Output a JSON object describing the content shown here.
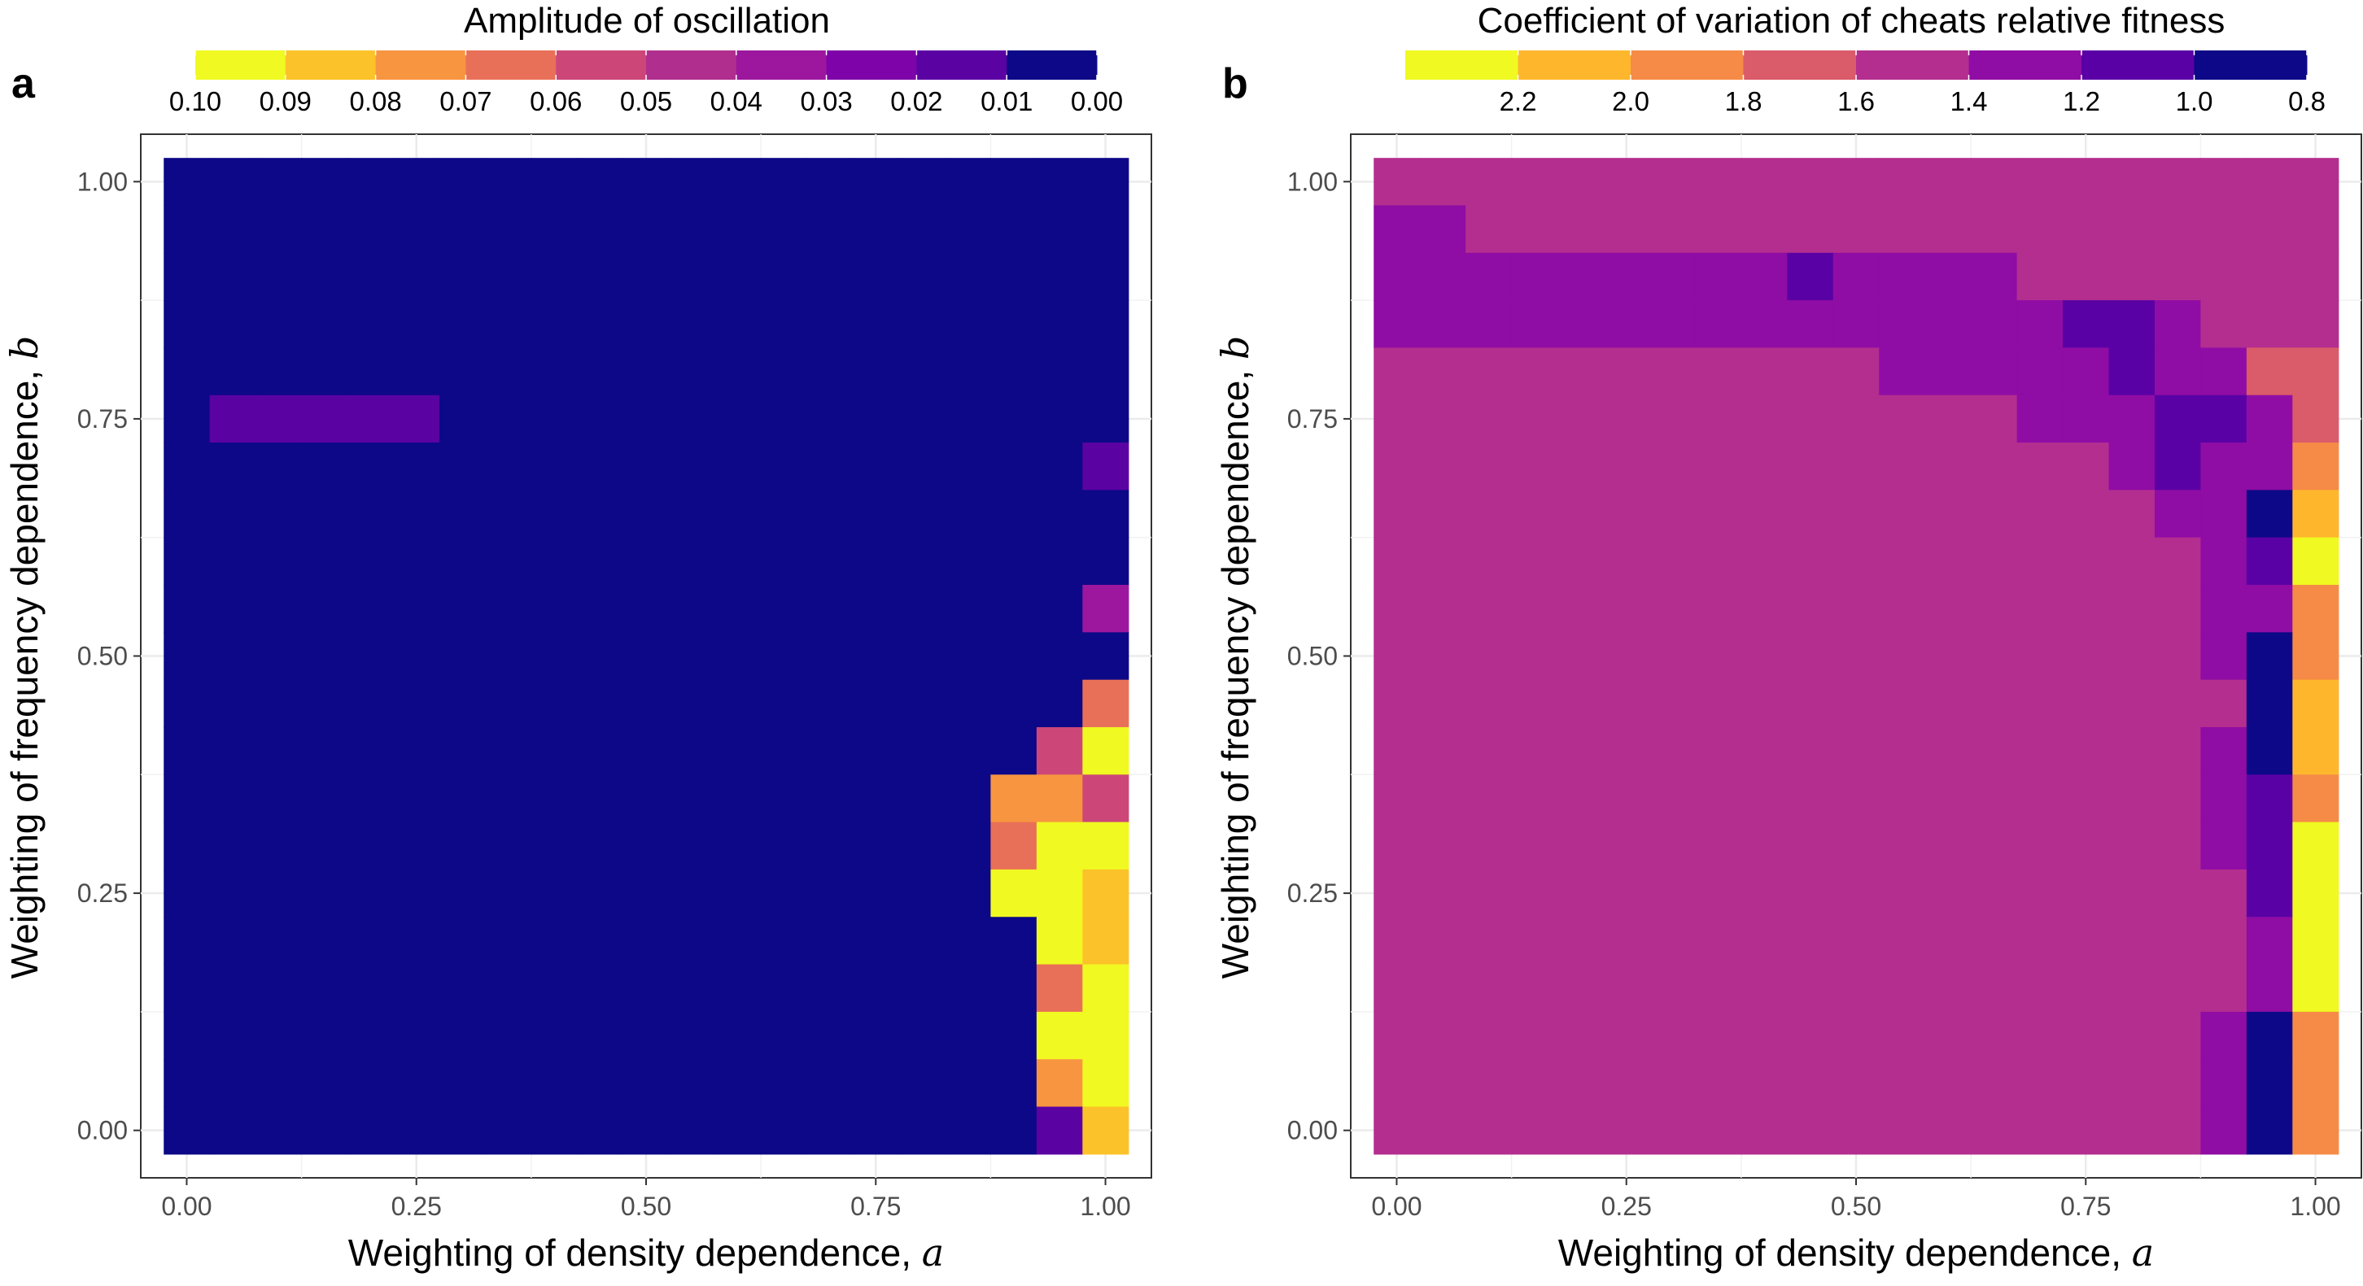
{
  "chart_data": [
    {
      "type": "heatmap",
      "panel_label": "a",
      "title": "",
      "xlabel": "Weighting of density dependence,",
      "xlabel_var": "a",
      "ylabel": "Weighting of frequency dependence,",
      "ylabel_var": "b",
      "x_ticks": [
        "0.00",
        "0.25",
        "0.50",
        "0.75",
        "1.00"
      ],
      "y_ticks": [
        "0.00",
        "0.25",
        "0.50",
        "0.75",
        "1.00"
      ],
      "xlim": [
        -0.05,
        1.05
      ],
      "ylim": [
        -0.05,
        1.05
      ],
      "cell_size": 0.05,
      "x": [
        0.0,
        0.05,
        0.1,
        0.15,
        0.2,
        0.25,
        0.3,
        0.35,
        0.4,
        0.45,
        0.5,
        0.55,
        0.6,
        0.65,
        0.7,
        0.75,
        0.8,
        0.85,
        0.9,
        0.95,
        1.0
      ],
      "y": [
        0.0,
        0.05,
        0.1,
        0.15,
        0.2,
        0.25,
        0.3,
        0.35,
        0.4,
        0.45,
        0.5,
        0.55,
        0.6,
        0.65,
        0.7,
        0.75,
        0.8,
        0.85,
        0.9,
        0.95,
        1.0
      ],
      "grid": true,
      "colorbar": {
        "title": "Amplitude of oscillation",
        "position": "top",
        "colors": [
          "#F0F921",
          "#FCC229",
          "#F89540",
          "#E97058",
          "#CC4778",
          "#B02F8E",
          "#9C179E",
          "#7E03A8",
          "#5B02A3",
          "#0D0887"
        ],
        "tick_labels": [
          "0.10",
          "0.09",
          "0.08",
          "0.07",
          "0.06",
          "0.05",
          "0.04",
          "0.03",
          "0.02",
          "0.01",
          "0.00"
        ],
        "tick_mode": "edges"
      },
      "value_grid_note": "rows from b=1.00 (top) down to b=0.00; values are colour-bin indices 0..9 matching colorbar.colors",
      "values": [
        "999999999999999999999",
        "999999999999999999999",
        "999999999999999999999",
        "999999999999999999999",
        "999999999999999999999",
        "988888999999999999999",
        "999999999999999999998",
        "999999999999999999999",
        "999999999999999999999",
        "999999999999999999996",
        "999999999999999999999",
        "999999999999999999993",
        "999999999999999999940",
        "999999999999999999224",
        "999999999999999999300",
        "999999999999999999001",
        "999999999999999999901",
        "999999999999999999930",
        "999999999999999999900",
        "999999999999999999920",
        "999999999999999999981"
      ]
    },
    {
      "type": "heatmap",
      "panel_label": "b",
      "title": "",
      "xlabel": "Weighting of density dependence,",
      "xlabel_var": "a",
      "ylabel": "Weighting of frequency dependence,",
      "ylabel_var": "b",
      "x_ticks": [
        "0.00",
        "0.25",
        "0.50",
        "0.75",
        "1.00"
      ],
      "y_ticks": [
        "0.00",
        "0.25",
        "0.50",
        "0.75",
        "1.00"
      ],
      "xlim": [
        -0.05,
        1.05
      ],
      "ylim": [
        -0.05,
        1.05
      ],
      "cell_size": 0.05,
      "grid": true,
      "colorbar": {
        "title": "Coefficient of variation of cheats relative fitness",
        "position": "top",
        "colors": [
          "#F0F921",
          "#FEB72D",
          "#F58B47",
          "#DA5B69",
          "#B42E8F",
          "#8F0DA4",
          "#5A01A5",
          "#0D0887"
        ],
        "tick_labels": [
          "2.2",
          "2.0",
          "1.8",
          "1.6",
          "1.4",
          "1.2",
          "1.0",
          "0.8"
        ],
        "tick_mode": "inner"
      },
      "value_grid_note": "rows from b=1.00 (top) down to b=0.00; values are colour-bin indices 0..7 matching colorbar.colors",
      "values": [
        "444444444444444444444",
        "554444444444444444444",
        "555555555655554444444",
        "555555555555555665444",
        "444444444445555565533",
        "444444444444445556653",
        "444444444444444456552",
        "444444444444444445571",
        "444444444444444444560",
        "444444444444444444552",
        "444444444444444444572",
        "444444444444444444471",
        "444444444444444444571",
        "444444444444444444562",
        "444444444444444444560",
        "444444444444444444460",
        "444444444444444444450",
        "444444444444444444450",
        "444444444444444444572",
        "444444444444444444572",
        "444444444444444444572"
      ]
    }
  ]
}
